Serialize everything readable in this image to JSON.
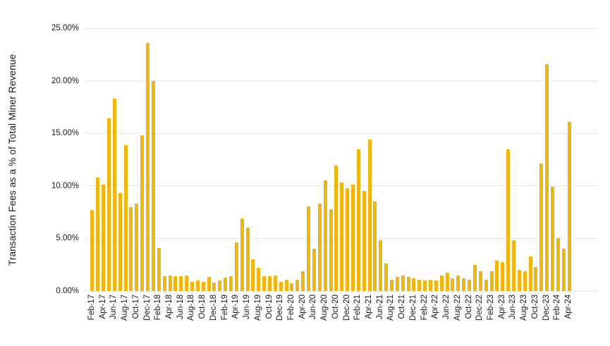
{
  "chart_data": {
    "type": "bar",
    "title": "",
    "xlabel": "",
    "ylabel": "Transaction Fees as a % of Total Miner Revenue",
    "ylim": [
      0,
      25
    ],
    "y_tick_labels": [
      "0.00%",
      "5.00%",
      "10.00%",
      "15.00%",
      "20.00%",
      "25.00%"
    ],
    "y_tick_values": [
      0,
      5,
      10,
      15,
      20,
      25
    ],
    "x_tick_step": 2,
    "grid": "horizontal",
    "legend_position": "none",
    "bar_color": "#efb512",
    "gridline_color": "#e8e8e8",
    "text_color": "#1a1a1a",
    "categories": [
      "Feb-17",
      "Mar-17",
      "Apr-17",
      "May-17",
      "Jun-17",
      "Jul-17",
      "Aug-17",
      "Sep-17",
      "Oct-17",
      "Nov-17",
      "Dec-17",
      "Jan-18",
      "Feb-18",
      "Mar-18",
      "Apr-18",
      "May-18",
      "Jun-18",
      "Jul-18",
      "Aug-18",
      "Sep-18",
      "Oct-18",
      "Nov-18",
      "Dec-18",
      "Jan-19",
      "Feb-19",
      "Mar-19",
      "Apr-19",
      "May-19",
      "Jun-19",
      "Jul-19",
      "Aug-19",
      "Sep-19",
      "Oct-19",
      "Nov-19",
      "Dec-19",
      "Jan-20",
      "Feb-20",
      "Mar-20",
      "Apr-20",
      "May-20",
      "Jun-20",
      "Jul-20",
      "Aug-20",
      "Sep-20",
      "Oct-20",
      "Nov-20",
      "Dec-20",
      "Jan-21",
      "Feb-21",
      "Mar-21",
      "Apr-21",
      "May-21",
      "Jun-21",
      "Jul-21",
      "Aug-21",
      "Sep-21",
      "Oct-21",
      "Nov-21",
      "Dec-21",
      "Jan-22",
      "Feb-22",
      "Mar-22",
      "Apr-22",
      "May-22",
      "Jun-22",
      "Jul-22",
      "Aug-22",
      "Sep-22",
      "Oct-22",
      "Nov-22",
      "Dec-22",
      "Jan-23",
      "Feb-23",
      "Mar-23",
      "Apr-23",
      "May-23",
      "Jun-23",
      "Jul-23",
      "Aug-23",
      "Sep-23",
      "Oct-23",
      "Nov-23",
      "Dec-23",
      "Jan-24",
      "Feb-24",
      "Mar-24",
      "Apr-24"
    ],
    "values": [
      7.7,
      10.8,
      10.1,
      16.4,
      18.3,
      9.3,
      13.9,
      8.0,
      8.3,
      14.8,
      23.6,
      20.0,
      4.1,
      1.4,
      1.45,
      1.4,
      1.4,
      1.45,
      0.85,
      1.0,
      0.85,
      1.35,
      0.8,
      1.0,
      1.3,
      1.4,
      4.6,
      6.9,
      6.0,
      3.0,
      2.2,
      1.4,
      1.4,
      1.5,
      0.9,
      1.1,
      0.75,
      1.05,
      1.85,
      8.05,
      4.0,
      8.3,
      10.5,
      7.8,
      11.9,
      10.3,
      9.8,
      10.1,
      13.5,
      9.5,
      14.4,
      8.5,
      4.85,
      2.6,
      1.1,
      1.35,
      1.45,
      1.35,
      1.2,
      1.05,
      1.0,
      1.1,
      1.0,
      1.5,
      1.75,
      1.2,
      1.5,
      1.2,
      1.05,
      2.45,
      1.85,
      1.1,
      1.9,
      2.85,
      2.75,
      13.5,
      4.8,
      2.0,
      1.9,
      3.3,
      2.3,
      12.1,
      21.6,
      9.9,
      5.0,
      4.0,
      16.1
    ]
  }
}
